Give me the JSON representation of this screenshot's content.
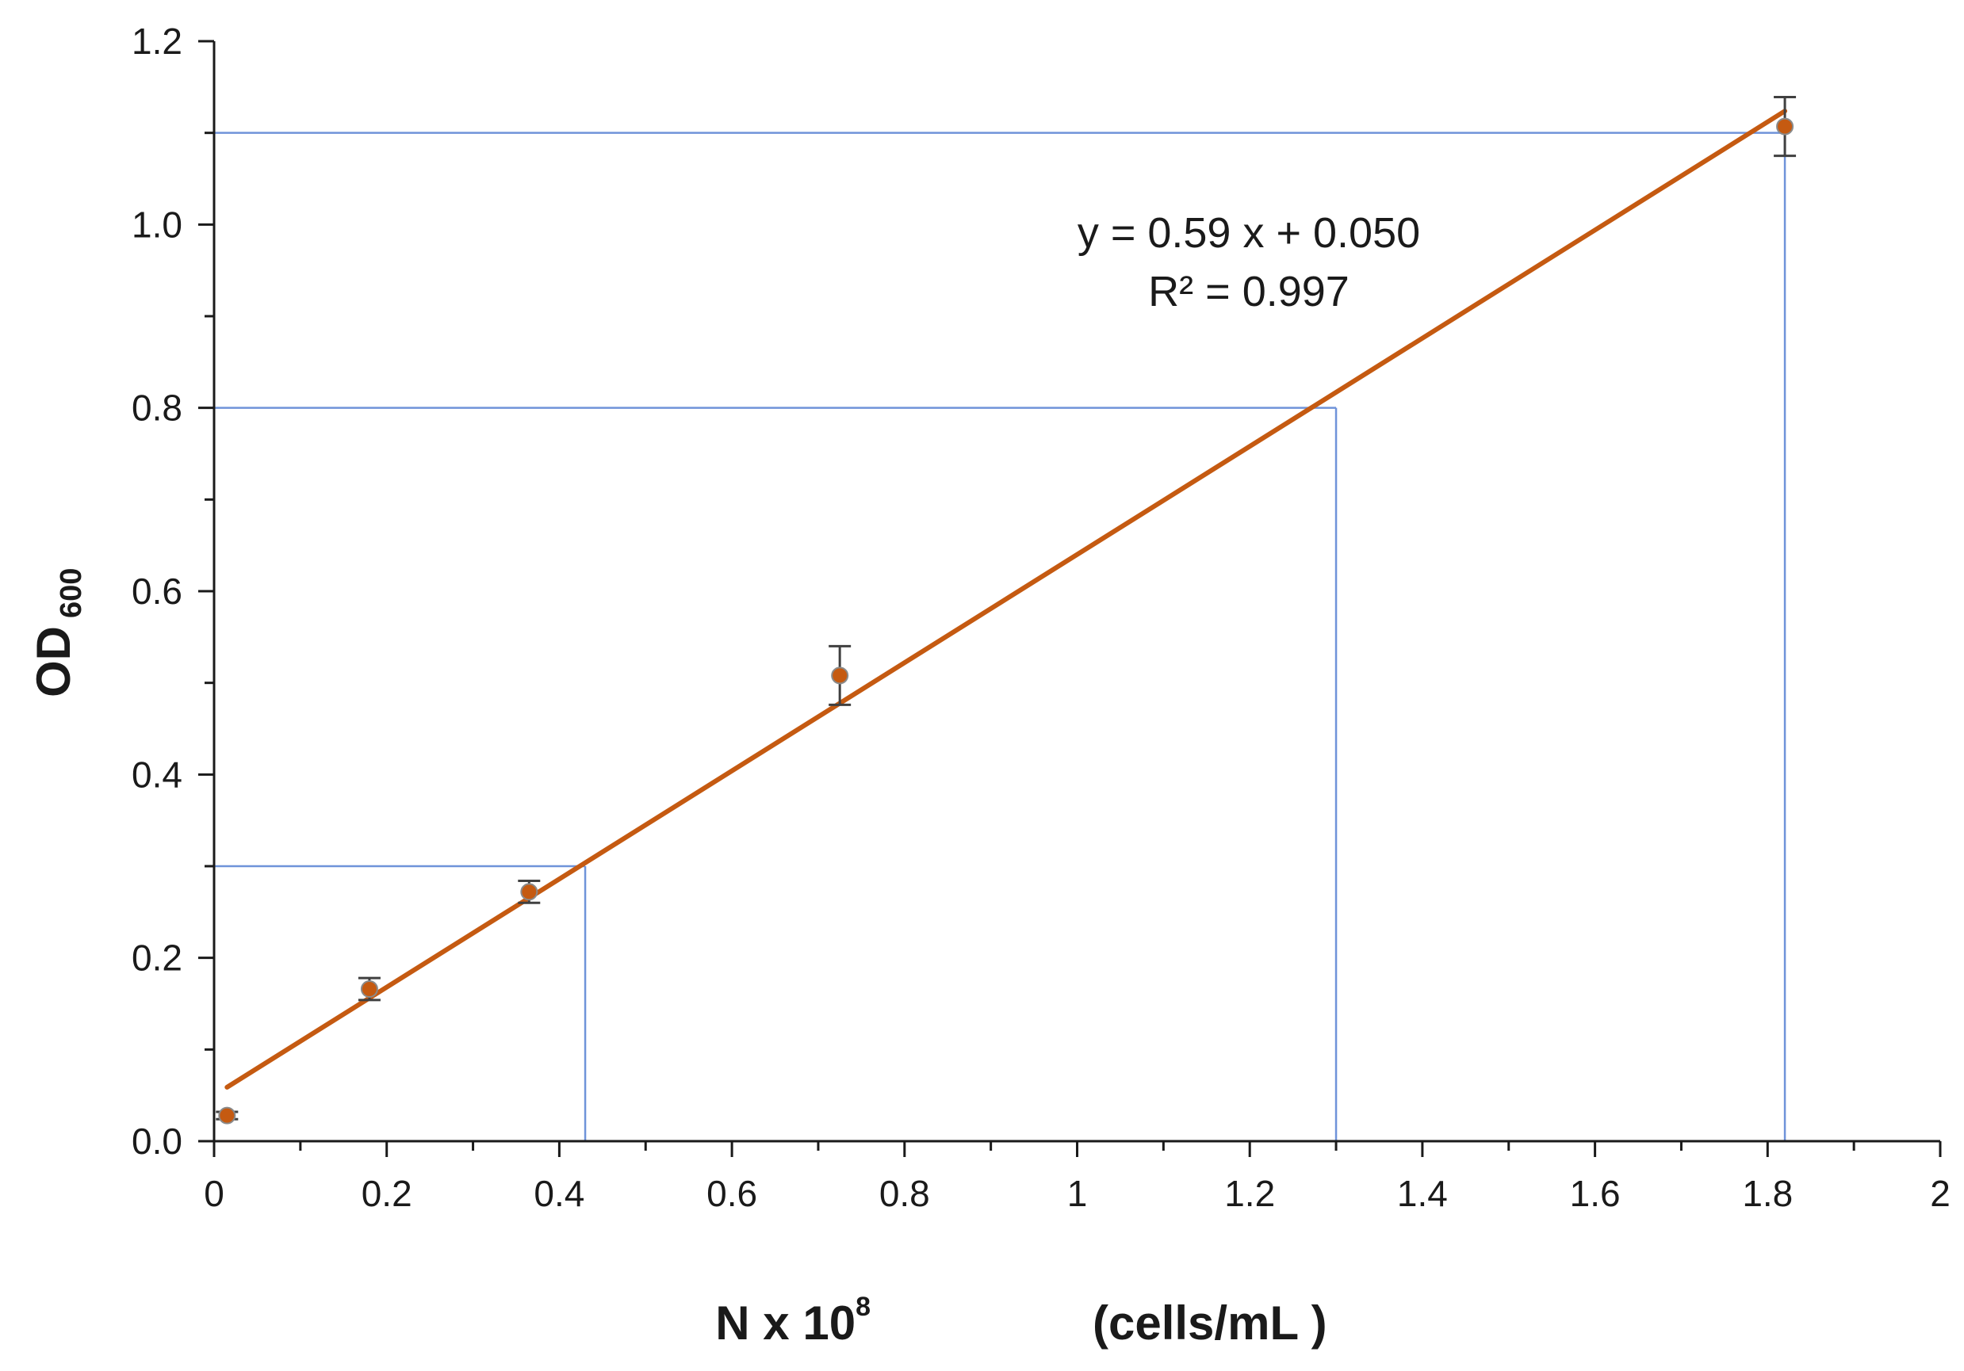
{
  "chart_data": {
    "type": "scatter",
    "title": "",
    "xlabel": {
      "main": "N  x 10",
      "superscript": "8",
      "units": "(cells/mL )"
    },
    "ylabel": {
      "main": "OD",
      "subscript": "600"
    },
    "xlim": [
      0,
      2
    ],
    "ylim": [
      0,
      1.2
    ],
    "x_ticks": [
      "0",
      "0.2",
      "0.4",
      "0.6",
      "0.8",
      "1",
      "1.2",
      "1.4",
      "1.6",
      "1.8",
      "2"
    ],
    "y_ticks": [
      "0.0",
      "0.2",
      "0.4",
      "0.6",
      "0.8",
      "1.0",
      "1.2"
    ],
    "series": [
      {
        "x": [
          0.015,
          0.18,
          0.365,
          0.725,
          1.82
        ],
        "y": [
          0.028,
          0.166,
          0.272,
          0.508,
          1.107
        ],
        "error": [
          0.004,
          0.012,
          0.012,
          0.032,
          0.032
        ]
      }
    ],
    "trendline": {
      "slope": 0.59,
      "intercept": 0.05,
      "x_range": [
        0.015,
        1.82
      ],
      "equation_label": "y = 0.59 x + 0.050",
      "r2_label": "R² = 0.997"
    },
    "guide_lines": [
      {
        "x": 0.43,
        "y": 0.3
      },
      {
        "x": 1.3,
        "y": 0.8
      },
      {
        "x": 1.82,
        "y": 1.1
      }
    ],
    "grid": false,
    "legend": "none",
    "colors": {
      "point": "#c55a11",
      "trendline": "#c55a11",
      "error_bar": "#404040",
      "guide": "#6f93d9",
      "axis": "#1a1a1a"
    }
  }
}
